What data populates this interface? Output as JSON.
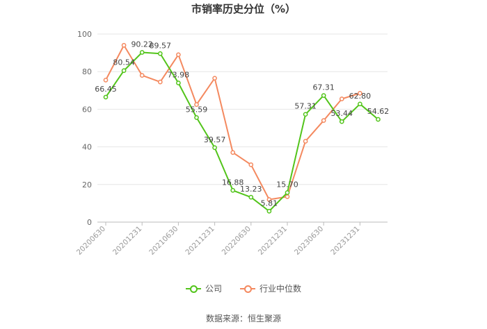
{
  "chart_data": {
    "type": "line",
    "title": "市销率历史分位（%）",
    "x": [
      "20200630",
      "20200930",
      "20201231",
      "20210331",
      "20210630",
      "20210930",
      "20211231",
      "20220331",
      "20220630",
      "20220930",
      "20221231",
      "20230331",
      "20230630",
      "20230930",
      "20231231",
      "20240331"
    ],
    "x_tick_labels": [
      "20200630",
      "20201231",
      "20210630",
      "20211231",
      "20220630",
      "20221231",
      "20230630",
      "20231231"
    ],
    "ylim": [
      0,
      100
    ],
    "y_ticks": [
      0,
      20,
      40,
      60,
      80,
      100
    ],
    "grid": true,
    "legend_position": "bottom",
    "series": [
      {
        "name": "公司",
        "color": "#52c41a",
        "values": [
          66.45,
          80.54,
          90.22,
          89.57,
          73.98,
          55.59,
          39.57,
          16.88,
          13.23,
          5.81,
          15.7,
          57.31,
          67.31,
          53.44,
          62.8,
          54.62
        ],
        "labels": [
          "66.45",
          "80.54",
          "90.22",
          "89.57",
          "73.98",
          "55.59",
          "39.57",
          "16.88",
          "13.23",
          "5.81",
          "15.70",
          "57.31",
          "67.31",
          "53.44",
          "62.80",
          "54.62"
        ]
      },
      {
        "name": "行业中位数",
        "color": "#f4895f",
        "values": [
          75.5,
          94,
          78,
          74.5,
          89,
          62.5,
          76.5,
          37,
          30.5,
          12,
          13.5,
          43,
          54,
          65.5,
          68.5,
          null
        ],
        "labels": []
      }
    ]
  },
  "legend": {
    "company": "公司",
    "industry": "行业中位数"
  },
  "source": "数据来源：恒生聚源"
}
